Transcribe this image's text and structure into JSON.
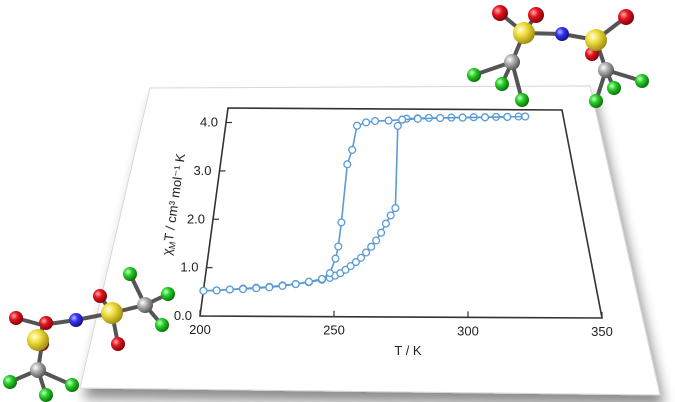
{
  "chart_data": {
    "type": "scatter",
    "xlabel": "T / K",
    "ylabel_main": "χ",
    "ylabel_sub": "M",
    "ylabel_rest": "T / cm³ mol⁻¹ K",
    "xlim": [
      200,
      350
    ],
    "ylim": [
      0.0,
      4.3
    ],
    "xticks": [
      "200",
      "250",
      "300",
      "350"
    ],
    "yticks": [
      "0.0",
      "1.0",
      "2.0",
      "3.0",
      "4.0"
    ],
    "grid": false,
    "series": [
      {
        "values_x": [
          200,
          205,
          210,
          215,
          220,
          225,
          230,
          235,
          240,
          245,
          248,
          250,
          252,
          254,
          256,
          258,
          260,
          262,
          264,
          266,
          268,
          270,
          272,
          274,
          276,
          278,
          280,
          285,
          290,
          295,
          300,
          305,
          310,
          315,
          320,
          325,
          330,
          333
        ],
        "values_y": [
          0.52,
          0.53,
          0.55,
          0.57,
          0.59,
          0.61,
          0.64,
          0.67,
          0.71,
          0.76,
          0.8,
          0.85,
          0.9,
          0.97,
          1.05,
          1.13,
          1.22,
          1.33,
          1.45,
          1.58,
          1.74,
          1.93,
          2.1,
          2.25,
          3.95,
          4.08,
          4.1,
          4.11,
          4.12,
          4.12,
          4.13,
          4.13,
          4.14,
          4.14,
          4.15,
          4.15,
          4.16,
          4.16
        ]
      },
      {
        "values_x": [
          333,
          325,
          315,
          305,
          295,
          285,
          278,
          272,
          266,
          262,
          258,
          256,
          254,
          252,
          251,
          250,
          248,
          245,
          240,
          235,
          230,
          225,
          220,
          215,
          210,
          205,
          200
        ],
        "values_y": [
          4.16,
          4.15,
          4.14,
          4.13,
          4.12,
          4.1,
          4.08,
          4.06,
          4.05,
          4.02,
          3.95,
          3.45,
          3.15,
          1.95,
          1.45,
          1.2,
          0.9,
          0.78,
          0.72,
          0.67,
          0.63,
          0.6,
          0.58,
          0.56,
          0.55,
          0.53,
          0.52
        ]
      }
    ]
  },
  "colors": {
    "series": "#5b9bd5",
    "axis": "#333333",
    "carbon": "#8c8c8c",
    "sulfur": "#e8d431",
    "oxygen": "#e0101a",
    "nitrogen": "#2a2af0",
    "fluorine": "#1fc41f"
  },
  "molecules": {
    "top_right": "bis(trifluoromethanesulfonyl)imide molecule",
    "bottom_left": "bis(trifluoromethanesulfonyl)imide molecule"
  }
}
